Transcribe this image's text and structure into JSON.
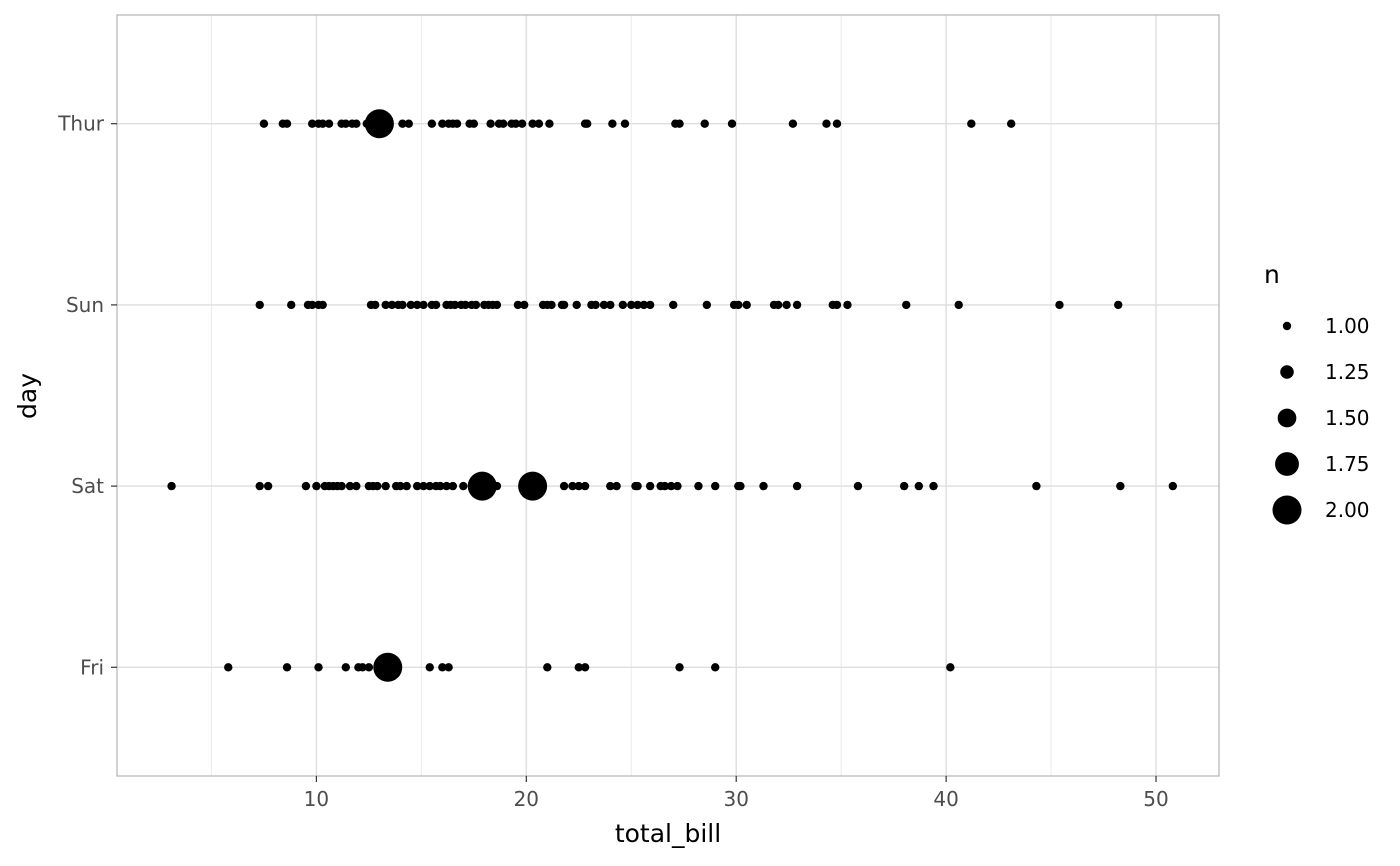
{
  "chart_data": {
    "type": "scatter",
    "title": "",
    "xlabel": "total_bill",
    "ylabel": "day",
    "xlim": [
      0.5,
      53.0
    ],
    "x_ticks": [
      10,
      20,
      30,
      40,
      50
    ],
    "y_categories": [
      "Fri",
      "Sat",
      "Sun",
      "Thur"
    ],
    "grid": true,
    "point_color": "#000000",
    "legend": {
      "title": "n",
      "placement": "right",
      "entries": [
        {
          "label": "1.00",
          "value": 1.0
        },
        {
          "label": "1.25",
          "value": 1.25
        },
        {
          "label": "1.50",
          "value": 1.5
        },
        {
          "label": "1.75",
          "value": 1.75
        },
        {
          "label": "2.00",
          "value": 2.0
        }
      ]
    },
    "series": [
      {
        "category": "Thur",
        "points": [
          {
            "x": 7.5,
            "n": 1
          },
          {
            "x": 8.4,
            "n": 1
          },
          {
            "x": 8.6,
            "n": 1
          },
          {
            "x": 9.8,
            "n": 1
          },
          {
            "x": 10.1,
            "n": 1
          },
          {
            "x": 10.3,
            "n": 1
          },
          {
            "x": 10.6,
            "n": 1
          },
          {
            "x": 11.2,
            "n": 1
          },
          {
            "x": 11.4,
            "n": 1
          },
          {
            "x": 11.7,
            "n": 1
          },
          {
            "x": 11.9,
            "n": 1
          },
          {
            "x": 12.4,
            "n": 1
          },
          {
            "x": 12.7,
            "n": 1
          },
          {
            "x": 13.0,
            "n": 2
          },
          {
            "x": 13.4,
            "n": 1
          },
          {
            "x": 14.1,
            "n": 1
          },
          {
            "x": 14.4,
            "n": 1
          },
          {
            "x": 15.5,
            "n": 1
          },
          {
            "x": 16.0,
            "n": 1
          },
          {
            "x": 16.3,
            "n": 1
          },
          {
            "x": 16.5,
            "n": 1
          },
          {
            "x": 16.7,
            "n": 1
          },
          {
            "x": 17.3,
            "n": 1
          },
          {
            "x": 17.5,
            "n": 1
          },
          {
            "x": 18.3,
            "n": 1
          },
          {
            "x": 18.7,
            "n": 1
          },
          {
            "x": 18.9,
            "n": 1
          },
          {
            "x": 19.3,
            "n": 1
          },
          {
            "x": 19.5,
            "n": 1
          },
          {
            "x": 19.8,
            "n": 1
          },
          {
            "x": 20.3,
            "n": 1
          },
          {
            "x": 20.6,
            "n": 1
          },
          {
            "x": 21.1,
            "n": 1
          },
          {
            "x": 22.8,
            "n": 1
          },
          {
            "x": 22.9,
            "n": 1
          },
          {
            "x": 24.1,
            "n": 1
          },
          {
            "x": 24.7,
            "n": 1
          },
          {
            "x": 27.1,
            "n": 1
          },
          {
            "x": 27.3,
            "n": 1
          },
          {
            "x": 28.5,
            "n": 1
          },
          {
            "x": 29.8,
            "n": 1
          },
          {
            "x": 32.7,
            "n": 1
          },
          {
            "x": 34.3,
            "n": 1
          },
          {
            "x": 34.8,
            "n": 1
          },
          {
            "x": 41.2,
            "n": 1
          },
          {
            "x": 43.1,
            "n": 1
          }
        ]
      },
      {
        "category": "Sun",
        "points": [
          {
            "x": 7.3,
            "n": 1
          },
          {
            "x": 8.8,
            "n": 1
          },
          {
            "x": 9.6,
            "n": 1
          },
          {
            "x": 9.8,
            "n": 1
          },
          {
            "x": 10.1,
            "n": 1
          },
          {
            "x": 10.3,
            "n": 1
          },
          {
            "x": 12.6,
            "n": 1
          },
          {
            "x": 12.8,
            "n": 1
          },
          {
            "x": 13.3,
            "n": 1
          },
          {
            "x": 13.6,
            "n": 1
          },
          {
            "x": 13.9,
            "n": 1
          },
          {
            "x": 14.1,
            "n": 1
          },
          {
            "x": 14.5,
            "n": 1
          },
          {
            "x": 14.8,
            "n": 1
          },
          {
            "x": 15.1,
            "n": 1
          },
          {
            "x": 15.5,
            "n": 1
          },
          {
            "x": 15.7,
            "n": 1
          },
          {
            "x": 16.2,
            "n": 1
          },
          {
            "x": 16.4,
            "n": 1
          },
          {
            "x": 16.6,
            "n": 1
          },
          {
            "x": 16.9,
            "n": 1
          },
          {
            "x": 17.1,
            "n": 1
          },
          {
            "x": 17.4,
            "n": 1
          },
          {
            "x": 17.6,
            "n": 1
          },
          {
            "x": 18.0,
            "n": 1
          },
          {
            "x": 18.2,
            "n": 1
          },
          {
            "x": 18.4,
            "n": 1
          },
          {
            "x": 18.6,
            "n": 1
          },
          {
            "x": 19.6,
            "n": 1
          },
          {
            "x": 19.9,
            "n": 1
          },
          {
            "x": 20.8,
            "n": 1
          },
          {
            "x": 21.0,
            "n": 1
          },
          {
            "x": 21.2,
            "n": 1
          },
          {
            "x": 21.7,
            "n": 1
          },
          {
            "x": 21.8,
            "n": 1
          },
          {
            "x": 22.4,
            "n": 1
          },
          {
            "x": 23.1,
            "n": 1
          },
          {
            "x": 23.3,
            "n": 1
          },
          {
            "x": 23.7,
            "n": 1
          },
          {
            "x": 24.0,
            "n": 1
          },
          {
            "x": 24.6,
            "n": 1
          },
          {
            "x": 25.0,
            "n": 1
          },
          {
            "x": 25.3,
            "n": 1
          },
          {
            "x": 25.6,
            "n": 1
          },
          {
            "x": 25.9,
            "n": 1
          },
          {
            "x": 27.0,
            "n": 1
          },
          {
            "x": 28.6,
            "n": 1
          },
          {
            "x": 29.9,
            "n": 1
          },
          {
            "x": 30.1,
            "n": 1
          },
          {
            "x": 30.5,
            "n": 1
          },
          {
            "x": 31.8,
            "n": 1
          },
          {
            "x": 32.0,
            "n": 1
          },
          {
            "x": 32.4,
            "n": 1
          },
          {
            "x": 32.9,
            "n": 1
          },
          {
            "x": 34.6,
            "n": 1
          },
          {
            "x": 34.8,
            "n": 1
          },
          {
            "x": 35.3,
            "n": 1
          },
          {
            "x": 38.1,
            "n": 1
          },
          {
            "x": 40.6,
            "n": 1
          },
          {
            "x": 45.4,
            "n": 1
          },
          {
            "x": 48.2,
            "n": 1
          }
        ]
      },
      {
        "category": "Sat",
        "points": [
          {
            "x": 3.1,
            "n": 1
          },
          {
            "x": 7.3,
            "n": 1
          },
          {
            "x": 7.7,
            "n": 1
          },
          {
            "x": 9.5,
            "n": 1
          },
          {
            "x": 10.0,
            "n": 1
          },
          {
            "x": 10.4,
            "n": 1
          },
          {
            "x": 10.6,
            "n": 1
          },
          {
            "x": 10.8,
            "n": 1
          },
          {
            "x": 11.0,
            "n": 1
          },
          {
            "x": 11.2,
            "n": 1
          },
          {
            "x": 11.6,
            "n": 1
          },
          {
            "x": 11.9,
            "n": 1
          },
          {
            "x": 12.5,
            "n": 1
          },
          {
            "x": 12.7,
            "n": 1
          },
          {
            "x": 12.9,
            "n": 1
          },
          {
            "x": 13.3,
            "n": 1
          },
          {
            "x": 13.8,
            "n": 1
          },
          {
            "x": 14.0,
            "n": 1
          },
          {
            "x": 14.3,
            "n": 1
          },
          {
            "x": 14.8,
            "n": 1
          },
          {
            "x": 15.1,
            "n": 1
          },
          {
            "x": 15.4,
            "n": 1
          },
          {
            "x": 15.7,
            "n": 1
          },
          {
            "x": 15.9,
            "n": 1
          },
          {
            "x": 16.2,
            "n": 1
          },
          {
            "x": 16.5,
            "n": 1
          },
          {
            "x": 17.0,
            "n": 1
          },
          {
            "x": 17.9,
            "n": 2
          },
          {
            "x": 18.6,
            "n": 1
          },
          {
            "x": 20.3,
            "n": 2
          },
          {
            "x": 21.8,
            "n": 1
          },
          {
            "x": 22.2,
            "n": 1
          },
          {
            "x": 22.5,
            "n": 1
          },
          {
            "x": 22.8,
            "n": 1
          },
          {
            "x": 24.0,
            "n": 1
          },
          {
            "x": 24.3,
            "n": 1
          },
          {
            "x": 25.2,
            "n": 1
          },
          {
            "x": 25.3,
            "n": 1
          },
          {
            "x": 25.9,
            "n": 1
          },
          {
            "x": 26.4,
            "n": 1
          },
          {
            "x": 26.6,
            "n": 1
          },
          {
            "x": 26.9,
            "n": 1
          },
          {
            "x": 27.2,
            "n": 1
          },
          {
            "x": 28.2,
            "n": 1
          },
          {
            "x": 29.0,
            "n": 1
          },
          {
            "x": 30.1,
            "n": 1
          },
          {
            "x": 30.2,
            "n": 1
          },
          {
            "x": 31.3,
            "n": 1
          },
          {
            "x": 32.9,
            "n": 1
          },
          {
            "x": 35.8,
            "n": 1
          },
          {
            "x": 38.0,
            "n": 1
          },
          {
            "x": 38.7,
            "n": 1
          },
          {
            "x": 39.4,
            "n": 1
          },
          {
            "x": 44.3,
            "n": 1
          },
          {
            "x": 48.3,
            "n": 1
          },
          {
            "x": 50.8,
            "n": 1
          }
        ]
      },
      {
        "category": "Fri",
        "points": [
          {
            "x": 5.8,
            "n": 1
          },
          {
            "x": 8.6,
            "n": 1
          },
          {
            "x": 10.1,
            "n": 1
          },
          {
            "x": 11.4,
            "n": 1
          },
          {
            "x": 12.0,
            "n": 1
          },
          {
            "x": 12.2,
            "n": 1
          },
          {
            "x": 12.5,
            "n": 1
          },
          {
            "x": 13.4,
            "n": 2
          },
          {
            "x": 15.4,
            "n": 1
          },
          {
            "x": 16.0,
            "n": 1
          },
          {
            "x": 16.3,
            "n": 1
          },
          {
            "x": 21.0,
            "n": 1
          },
          {
            "x": 22.5,
            "n": 1
          },
          {
            "x": 22.8,
            "n": 1
          },
          {
            "x": 27.3,
            "n": 1
          },
          {
            "x": 29.0,
            "n": 1
          },
          {
            "x": 40.2,
            "n": 1
          }
        ]
      }
    ]
  }
}
